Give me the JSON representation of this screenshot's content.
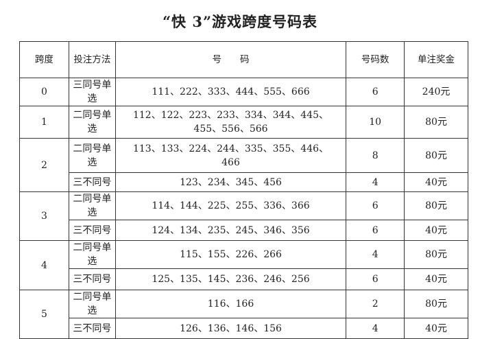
{
  "title": "“快 3”游戏跨度号码表",
  "headers": [
    "跨度",
    "投注方法",
    "号　　码",
    "号码数",
    "单注奖金"
  ],
  "rows": [
    {
      "span": "0",
      "method": "三同号单选",
      "numbers": "111、222、333、444、555、666",
      "count": "6",
      "prize": "240元"
    },
    {
      "span": "1",
      "method": "二同号单选",
      "numbers": "112、122、223、233、334、344、445、455、556、566",
      "count": "10",
      "prize": "80元"
    },
    {
      "span": "2",
      "method": "二同号单选",
      "numbers": "113、133、224、244、335、355、446、466",
      "count": "8",
      "prize": "80元"
    },
    {
      "span": "",
      "method": "三不同号",
      "numbers": "123、234、345、456",
      "count": "4",
      "prize": "40元"
    },
    {
      "span": "3",
      "method": "二同号单选",
      "numbers": "114、144、225、255、336、366",
      "count": "6",
      "prize": "80元"
    },
    {
      "span": "",
      "method": "三不同号",
      "numbers": "124、134、235、245、346、356",
      "count": "6",
      "prize": "40元"
    },
    {
      "span": "4",
      "method": "二同号单选",
      "numbers": "115、155、226、266",
      "count": "4",
      "prize": "80元"
    },
    {
      "span": "",
      "method": "三不同号",
      "numbers": "125、135、145、236、246、256",
      "count": "6",
      "prize": "40元"
    },
    {
      "span": "5",
      "method": "二同号单选",
      "numbers": "116、166",
      "count": "2",
      "prize": "80元"
    },
    {
      "span": "",
      "method": "三不同号",
      "numbers": "126、136、146、156",
      "count": "4",
      "prize": "40元"
    }
  ]
}
